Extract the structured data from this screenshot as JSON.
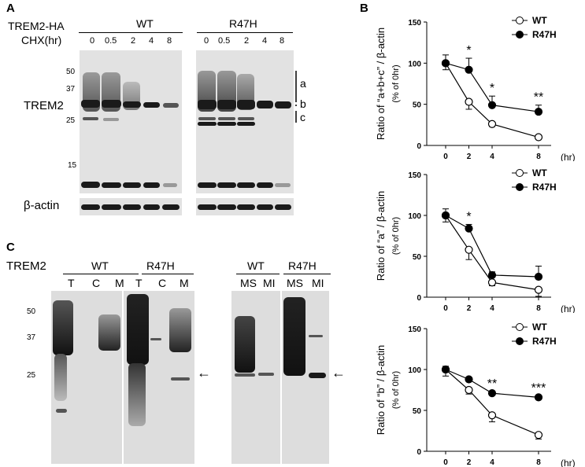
{
  "panelA": {
    "letter": "A",
    "row_label_construct": "TREM2-HA",
    "row_label_chx": "CHX(hr)",
    "groups": [
      "WT",
      "R47H"
    ],
    "timepoints": [
      "0",
      "0.5",
      "2",
      "4",
      "8"
    ],
    "mw_markers": [
      "50",
      "37",
      "25",
      "15"
    ],
    "protein_label": "TREM2",
    "bracket_labels": [
      "a",
      "b",
      "c"
    ],
    "loading_label": "β-actin"
  },
  "panelB": {
    "letter": "B",
    "unit": "(hr)",
    "yunit": "(% of 0hr)",
    "legend": [
      "WT",
      "R47H"
    ]
  },
  "panelC": {
    "letter": "C",
    "row_label": "TREM2",
    "groups_left": [
      "WT",
      "R47H"
    ],
    "lanes_left": [
      "T",
      "C",
      "M",
      "T",
      "C",
      "M"
    ],
    "groups_right": [
      "WT",
      "R47H"
    ],
    "lanes_right": [
      "MS",
      "MI",
      "MS",
      "MI"
    ],
    "mw_markers": [
      "50",
      "37",
      "25"
    ],
    "arrow": "←"
  },
  "chart_data": [
    {
      "type": "line",
      "ylabel": "Ratio of “a+b+c” / β-actin",
      "xlabel": "(hr)",
      "x": [
        0,
        2,
        4,
        8
      ],
      "ylim": [
        0,
        150
      ],
      "yticks": [
        0,
        50,
        100,
        150
      ],
      "series": [
        {
          "name": "WT",
          "values": [
            100,
            53,
            26,
            10
          ],
          "err": [
            8,
            9,
            3,
            2
          ]
        },
        {
          "name": "R47H",
          "values": [
            100,
            92,
            49,
            41
          ],
          "err": [
            10,
            14,
            11,
            8
          ]
        }
      ],
      "annotations": [
        {
          "x": 2,
          "text": "*"
        },
        {
          "x": 4,
          "text": "*"
        },
        {
          "x": 8,
          "text": "**"
        }
      ],
      "legend": "top-right"
    },
    {
      "type": "line",
      "ylabel": "Ratio of “a” / β-actin",
      "xlabel": "(hr)",
      "x": [
        0,
        2,
        4,
        8
      ],
      "ylim": [
        0,
        150
      ],
      "yticks": [
        0,
        50,
        100,
        150
      ],
      "series": [
        {
          "name": "WT",
          "values": [
            100,
            58,
            18,
            9
          ],
          "err": [
            8,
            12,
            4,
            8
          ]
        },
        {
          "name": "R47H",
          "values": [
            100,
            84,
            27,
            25
          ],
          "err": [
            8,
            5,
            4,
            13
          ]
        }
      ],
      "annotations": [
        {
          "x": 2,
          "text": "*"
        }
      ],
      "legend": "top-right"
    },
    {
      "type": "line",
      "ylabel": "Ratio of “b” / β-actin",
      "xlabel": "(hr)",
      "x": [
        0,
        2,
        4,
        8
      ],
      "ylim": [
        0,
        150
      ],
      "yticks": [
        0,
        50,
        100,
        150
      ],
      "series": [
        {
          "name": "WT",
          "values": [
            100,
            75,
            44,
            20
          ],
          "err": [
            8,
            5,
            8,
            5
          ]
        },
        {
          "name": "R47H",
          "values": [
            100,
            88,
            71,
            66
          ],
          "err": [
            4,
            2,
            2,
            2
          ]
        }
      ],
      "annotations": [
        {
          "x": 4,
          "text": "**"
        },
        {
          "x": 8,
          "text": "***"
        }
      ],
      "legend": "top-right"
    }
  ]
}
